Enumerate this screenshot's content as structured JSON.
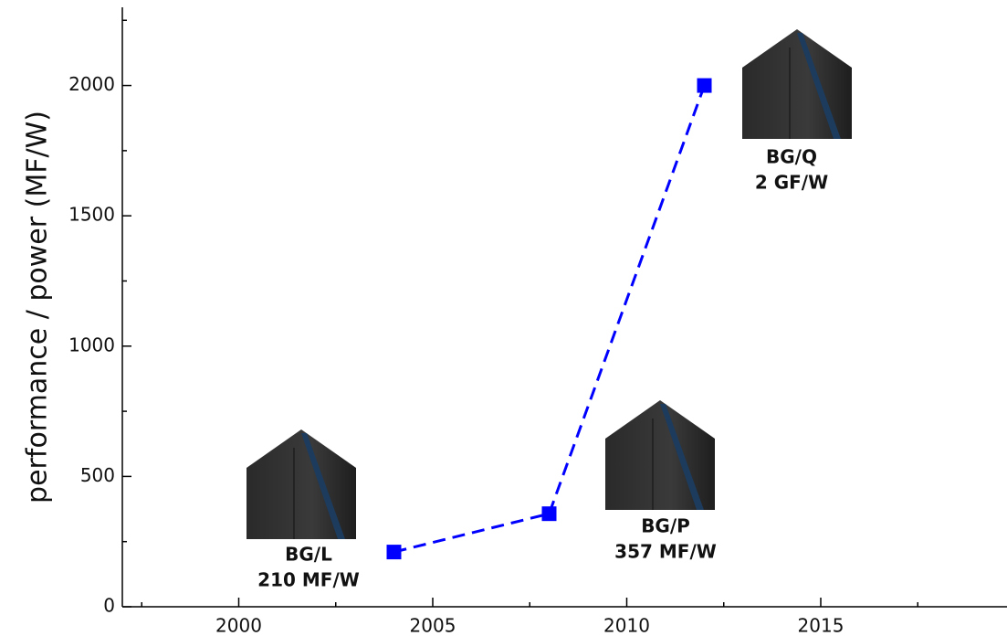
{
  "chart_data": {
    "type": "line",
    "ylabel": "performance / power (MF/W)",
    "x": [
      2004,
      2008,
      2012
    ],
    "series": [
      {
        "color": "#0000ff",
        "values": [
          210,
          357,
          2000
        ]
      }
    ],
    "xlim": [
      1997,
      2019.8
    ],
    "xticks": [
      2000,
      2005,
      2010,
      2015
    ],
    "xminorticks": [
      1997.5,
      2002.5,
      2007.5,
      2012.5,
      2017.5
    ],
    "ylim": [
      0,
      2300
    ],
    "yticks": [
      0,
      500,
      1000,
      1500,
      2000
    ],
    "yminorticks": [
      250,
      750,
      1250,
      1750,
      2250
    ],
    "annotations": [
      {
        "lines": [
          "BG/L",
          "210 MF/W"
        ]
      },
      {
        "lines": [
          "BG/P",
          "357 MF/W"
        ]
      },
      {
        "lines": [
          "BG/Q",
          "2 GF/W"
        ]
      }
    ]
  }
}
